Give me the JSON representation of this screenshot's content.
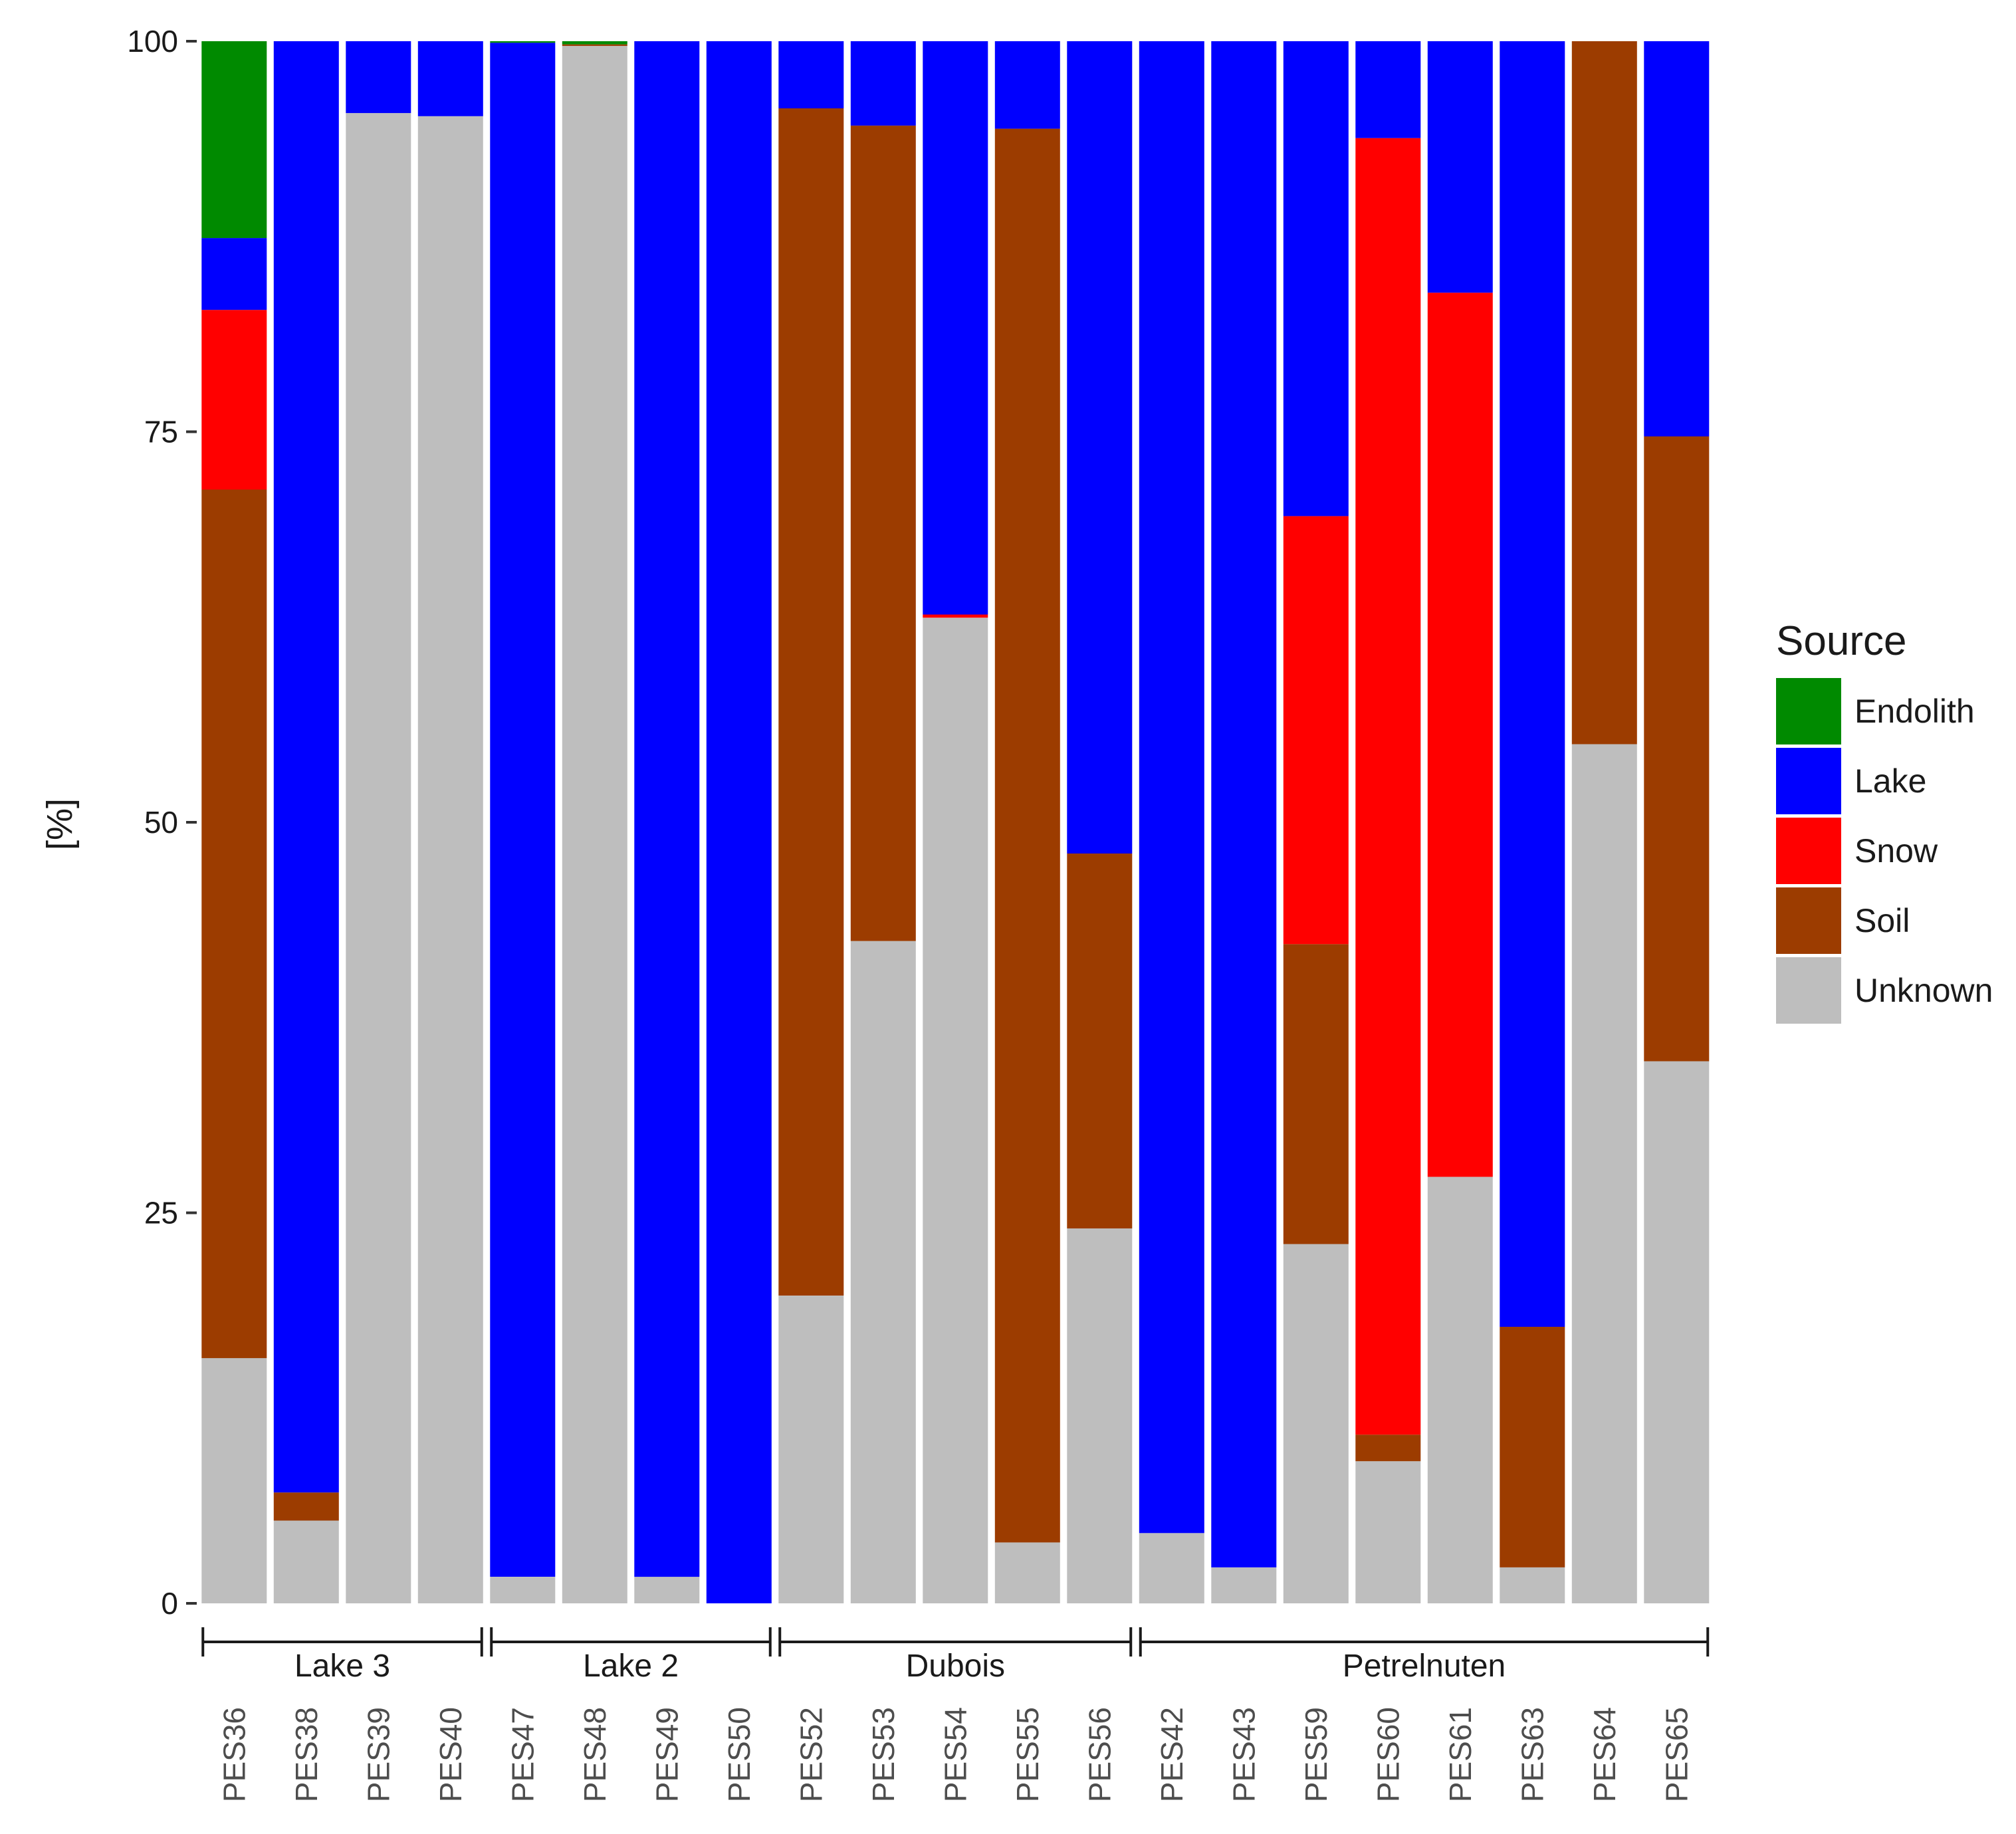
{
  "chart_data": {
    "type": "bar",
    "stacked": true,
    "title": "",
    "xlabel": "",
    "ylabel": "[%]",
    "ylim": [
      0,
      100
    ],
    "yticks": [
      "0",
      "25",
      "50",
      "75",
      "100"
    ],
    "ytick_values": [
      0,
      25,
      50,
      75,
      100
    ],
    "grid": false,
    "legend_position": "right",
    "legend_title": "Source",
    "legend_order": [
      "Endolith",
      "Lake",
      "Snow",
      "Soil",
      "Unknown"
    ],
    "colors": {
      "Endolith": "#008a00",
      "Lake": "#0000ff",
      "Snow": "#ff0000",
      "Soil": "#9c3c00",
      "Unknown": "#bebebe"
    },
    "stack_order_bottom_to_top": [
      "Unknown",
      "Soil",
      "Snow",
      "Lake",
      "Endolith"
    ],
    "groups": [
      {
        "name": "Lake 3",
        "samples": [
          "PES36",
          "PES38",
          "PES39",
          "PES40"
        ]
      },
      {
        "name": "Lake 2",
        "samples": [
          "PES47",
          "PES48",
          "PES49",
          "PES50"
        ]
      },
      {
        "name": "Dubois",
        "samples": [
          "PES52",
          "PES53",
          "PES54",
          "PES55",
          "PES56"
        ]
      },
      {
        "name": "Petrelnuten",
        "samples": [
          "PES42",
          "PES43",
          "PES59",
          "PES60",
          "PES61",
          "PES63",
          "PES64",
          "PES65"
        ]
      }
    ],
    "categories": [
      "PES36",
      "PES38",
      "PES39",
      "PES40",
      "PES47",
      "PES48",
      "PES49",
      "PES50",
      "PES52",
      "PES53",
      "PES54",
      "PES55",
      "PES56",
      "PES42",
      "PES43",
      "PES59",
      "PES60",
      "PES61",
      "PES63",
      "PES64",
      "PES65"
    ],
    "series": [
      {
        "name": "Unknown",
        "values": [
          15.7,
          5.3,
          95.4,
          95.2,
          1.7,
          99.7,
          1.7,
          0.0,
          19.7,
          42.4,
          63.1,
          3.9,
          24.0,
          4.5,
          2.3,
          23.0,
          9.1,
          27.3,
          2.3,
          55.0,
          34.7
        ]
      },
      {
        "name": "Soil",
        "values": [
          55.6,
          1.8,
          0.0,
          0.0,
          0.0,
          0.1,
          0.0,
          0.0,
          76.0,
          52.2,
          0.0,
          90.5,
          24.0,
          0.0,
          0.0,
          19.2,
          1.7,
          0.0,
          15.4,
          45.0,
          40.0
        ]
      },
      {
        "name": "Snow",
        "values": [
          11.5,
          0.0,
          0.0,
          0.0,
          0.0,
          0.0,
          0.0,
          0.0,
          0.0,
          0.0,
          0.2,
          0.0,
          0.0,
          0.0,
          0.0,
          27.4,
          83.0,
          56.6,
          0.0,
          0.0,
          0.0
        ]
      },
      {
        "name": "Lake",
        "values": [
          4.6,
          92.9,
          4.6,
          4.8,
          98.2,
          0.0,
          98.3,
          100.0,
          4.3,
          5.4,
          36.7,
          5.6,
          52.0,
          95.5,
          97.7,
          30.4,
          6.2,
          16.1,
          82.3,
          0.0,
          25.3
        ]
      },
      {
        "name": "Endolith",
        "values": [
          12.6,
          0.0,
          0.0,
          0.0,
          0.1,
          0.2,
          0.0,
          0.0,
          0.0,
          0.0,
          0.0,
          0.0,
          0.0,
          0.0,
          0.0,
          0.0,
          0.0,
          0.0,
          0.0,
          0.0,
          0.0
        ]
      }
    ]
  }
}
